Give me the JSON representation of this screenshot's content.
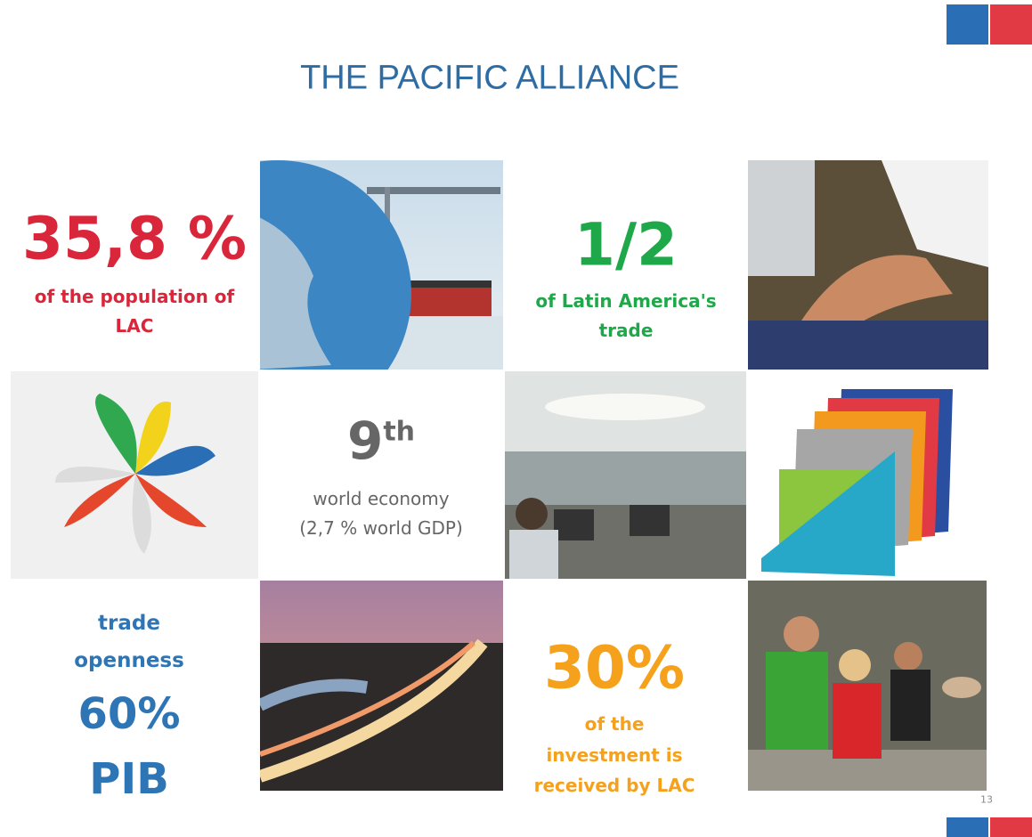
{
  "title": "THE PACIFIC ALLIANCE",
  "page_number": "13",
  "stats": [
    {
      "headline": "35,8 %",
      "caption": [
        "of the population of",
        "LAC"
      ]
    },
    {
      "headline": "1/2",
      "caption": [
        "of Latin America's",
        "trade"
      ]
    },
    {
      "headline": "9",
      "superscript": "th",
      "caption": [
        "world economy",
        "(2,7 % world GDP)"
      ]
    },
    {
      "intro": [
        "trade",
        "openness"
      ],
      "headline": "60%",
      "footer": "PIB"
    },
    {
      "headline": "30%",
      "caption": [
        "of the",
        "investment is",
        "received by LAC"
      ]
    }
  ]
}
